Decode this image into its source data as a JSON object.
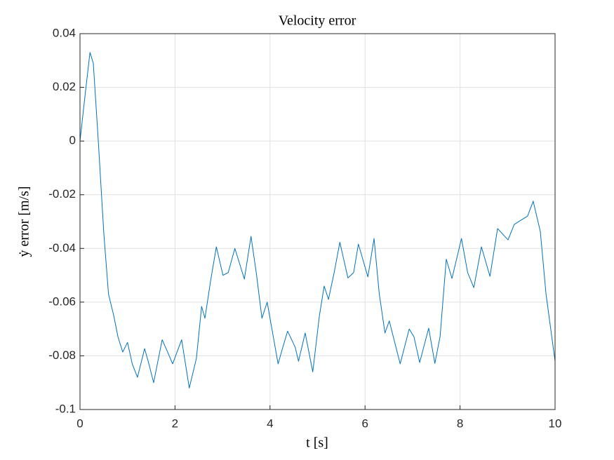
{
  "chart_data": {
    "type": "line",
    "title": "Velocity error",
    "x_label": "t [s]",
    "y_label": "ẏ error [m/s]",
    "x": [
      0,
      0.1,
      0.21,
      0.28,
      0.38,
      0.5,
      0.6,
      0.71,
      0.8,
      0.9,
      1.0,
      1.1,
      1.21,
      1.36,
      1.45,
      1.55,
      1.73,
      1.83,
      1.95,
      2.14,
      2.3,
      2.45,
      2.56,
      2.63,
      2.75,
      2.87,
      3.01,
      3.12,
      3.26,
      3.46,
      3.6,
      3.71,
      3.83,
      3.94,
      4.17,
      4.25,
      4.37,
      4.53,
      4.6,
      4.74,
      4.9,
      5.04,
      5.14,
      5.23,
      5.35,
      5.47,
      5.64,
      5.76,
      5.86,
      6.06,
      6.19,
      6.3,
      6.42,
      6.51,
      6.74,
      6.93,
      7.03,
      7.15,
      7.34,
      7.47,
      7.58,
      7.71,
      7.83,
      8.03,
      8.16,
      8.29,
      8.45,
      8.63,
      8.79,
      9.01,
      9.14,
      9.28,
      9.42,
      9.54,
      9.69,
      9.81,
      10
    ],
    "series": [
      {
        "name": "velocity error",
        "color": "#0072bd",
        "values": [
          0,
          0.016,
          0.033,
          0.029,
          0.0015,
          -0.034,
          -0.057,
          -0.065,
          -0.073,
          -0.0786,
          -0.075,
          -0.083,
          -0.088,
          -0.0773,
          -0.083,
          -0.09,
          -0.074,
          -0.078,
          -0.083,
          -0.074,
          -0.092,
          -0.081,
          -0.0616,
          -0.066,
          -0.052,
          -0.0394,
          -0.05,
          -0.049,
          -0.04,
          -0.0514,
          -0.0355,
          -0.049,
          -0.066,
          -0.06,
          -0.083,
          -0.078,
          -0.0708,
          -0.0768,
          -0.082,
          -0.0715,
          -0.086,
          -0.065,
          -0.054,
          -0.059,
          -0.049,
          -0.0377,
          -0.051,
          -0.049,
          -0.0384,
          -0.0506,
          -0.0363,
          -0.057,
          -0.0715,
          -0.067,
          -0.083,
          -0.07,
          -0.0729,
          -0.0825,
          -0.0697,
          -0.0828,
          -0.0728,
          -0.044,
          -0.0512,
          -0.0363,
          -0.049,
          -0.0546,
          -0.0394,
          -0.0504,
          -0.0326,
          -0.0368,
          -0.0311,
          -0.0295,
          -0.028,
          -0.0224,
          -0.0337,
          -0.057,
          -0.082
        ]
      }
    ],
    "xlim": [
      0,
      10
    ],
    "ylim": [
      -0.1,
      0.04
    ],
    "xticks": [
      0,
      2,
      4,
      6,
      8,
      10
    ],
    "yticks": [
      -0.1,
      -0.08,
      -0.06,
      -0.04,
      -0.02,
      0,
      0.02,
      0.04
    ],
    "grid": true
  }
}
